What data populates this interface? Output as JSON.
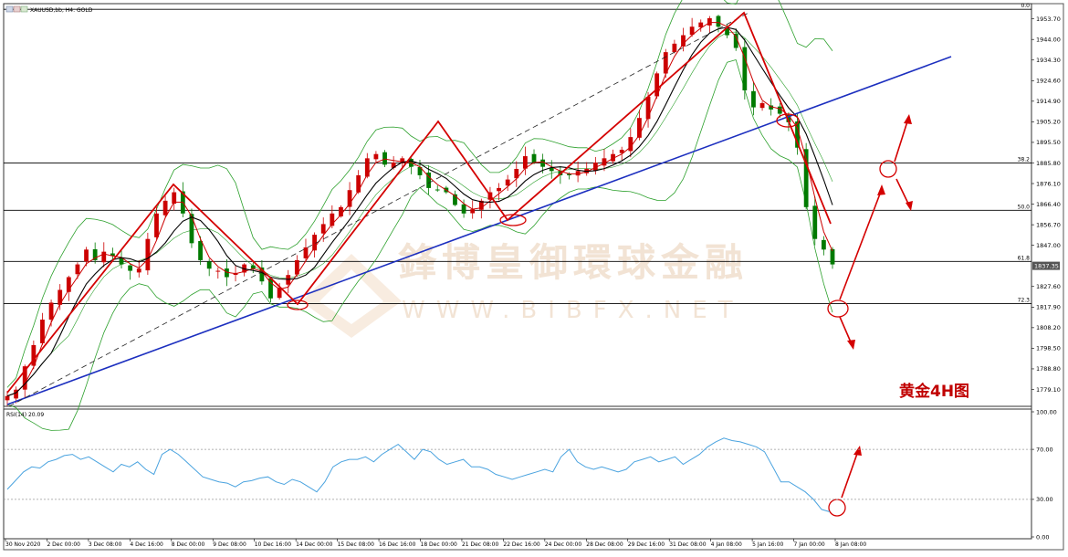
{
  "window": {
    "title": "XAUUSD,bb, H4: GOLD",
    "indicator_label": "RSI(14) 20.09"
  },
  "watermark": {
    "chinese": "鋒博皇御環球金融",
    "english": "WWW.BIBFX.NET"
  },
  "annotation": {
    "label": "黄金4H图",
    "color": "#c00000"
  },
  "colors": {
    "bull_candle": "#cc0000",
    "bear_candle": "#007a00",
    "bollinger": "#2ca02c",
    "ma_fast": "#cc0000",
    "ma_slow": "#000000",
    "trendline": "#1c2fbf",
    "rsi_line": "#4aa3df",
    "annotation": "#c00000"
  },
  "chart_data": [
    {
      "type": "candlestick",
      "title": "XAUUSD,bb, H4: GOLD",
      "y_ticks": [
        1953.7,
        1944.0,
        1934.3,
        1924.6,
        1914.9,
        1905.2,
        1895.5,
        1885.8,
        1876.1,
        1866.4,
        1856.7,
        1847.0,
        1827.6,
        1817.9,
        1808.2,
        1798.5,
        1788.8,
        1779.1
      ],
      "ylim": [
        1772,
        1960
      ],
      "current_price": "1837.35",
      "fib_levels": [
        {
          "label": "0.0",
          "price": 1958.2
        },
        {
          "label": "38.2",
          "price": 1885.8
        },
        {
          "label": "50.0",
          "price": 1863.5
        },
        {
          "label": "61.8",
          "price": 1839.4
        },
        {
          "label": "72.3",
          "price": 1819.5
        }
      ],
      "x_labels": [
        "30 Nov 2020",
        "2 Dec 00:00",
        "3 Dec 08:00",
        "4 Dec 16:00",
        "8 Dec 00:00",
        "9 Dec 08:00",
        "10 Dec 16:00",
        "14 Dec 00:00",
        "15 Dec 08:00",
        "16 Dec 16:00",
        "18 Dec 00:00",
        "21 Dec 08:00",
        "22 Dec 16:00",
        "24 Dec 00:00",
        "28 Dec 08:00",
        "29 Dec 16:00",
        "31 Dec 08:00",
        "4 Jan 08:00",
        "5 Jan 16:00",
        "7 Jan 00:00",
        "8 Jan 08:00"
      ],
      "close_path": [
        1776,
        1779,
        1790,
        1800,
        1812,
        1820,
        1826,
        1832,
        1838,
        1845,
        1840,
        1844,
        1842,
        1838,
        1835,
        1836,
        1850,
        1862,
        1868,
        1872,
        1862,
        1848,
        1840,
        1836,
        1835,
        1832,
        1834,
        1838,
        1836,
        1830,
        1822,
        1827,
        1833,
        1840,
        1846,
        1852,
        1857,
        1862,
        1865,
        1873,
        1880,
        1888,
        1890,
        1885,
        1886,
        1888,
        1884,
        1880,
        1874,
        1873,
        1872,
        1866,
        1862,
        1864,
        1868,
        1872,
        1874,
        1878,
        1883,
        1889,
        1886,
        1884,
        1882,
        1880,
        1880,
        1882,
        1883,
        1886,
        1888,
        1890,
        1892,
        1898,
        1907,
        1917,
        1928,
        1938,
        1942,
        1946,
        1950,
        1952,
        1954,
        1950,
        1946,
        1940,
        1920,
        1912,
        1914,
        1911,
        1909,
        1905,
        1893,
        1865,
        1850,
        1845,
        1838
      ]
    },
    {
      "type": "line",
      "title": "RSI(14) 20.09",
      "y_ticks": [
        100.0,
        70.0,
        30.0,
        0.0
      ],
      "ylim": [
        0,
        100
      ],
      "levels": [
        70,
        30
      ],
      "values": [
        38,
        45,
        52,
        56,
        55,
        60,
        62,
        65,
        66,
        62,
        64,
        60,
        56,
        52,
        58,
        56,
        60,
        54,
        50,
        66,
        70,
        66,
        60,
        54,
        48,
        46,
        44,
        43,
        40,
        44,
        45,
        47,
        48,
        44,
        42,
        46,
        44,
        40,
        36,
        44,
        56,
        60,
        62,
        62,
        64,
        60,
        66,
        70,
        74,
        68,
        62,
        70,
        68,
        62,
        58,
        60,
        62,
        56,
        56,
        54,
        50,
        48,
        46,
        48,
        50,
        52,
        54,
        52,
        64,
        70,
        60,
        56,
        54,
        56,
        54,
        52,
        54,
        60,
        62,
        64,
        60,
        62,
        64,
        58,
        62,
        66,
        72,
        76,
        79,
        77,
        76,
        74,
        72,
        68,
        56,
        44,
        44,
        40,
        36,
        30,
        22,
        20.09
      ]
    }
  ]
}
